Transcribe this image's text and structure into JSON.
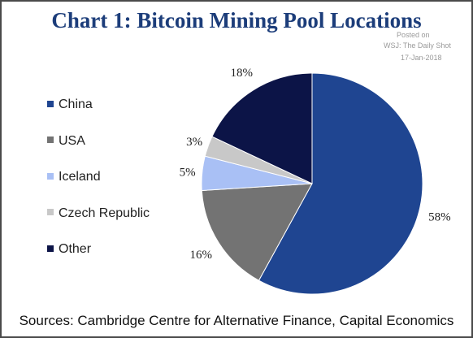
{
  "title": "Chart 1: Bitcoin Mining Pool Locations",
  "watermark": {
    "line1": "Posted on",
    "line2": "WSJ: The Daily Shot",
    "line3": "17-Jan-2018"
  },
  "source": "Sources: Cambridge Centre for Alternative Finance, Capital Economics",
  "chart_data": {
    "type": "pie",
    "title": "Chart 1: Bitcoin Mining Pool Locations",
    "legend_position": "left",
    "categories": [
      "China",
      "USA",
      "Iceland",
      "Czech Republic",
      "Other"
    ],
    "values": [
      58,
      16,
      5,
      3,
      18
    ],
    "labels": [
      "58%",
      "16%",
      "5%",
      "3%",
      "18%"
    ],
    "colors": [
      "#1f4591",
      "#737373",
      "#a9c0f5",
      "#c8c8c8",
      "#0c1447"
    ]
  }
}
